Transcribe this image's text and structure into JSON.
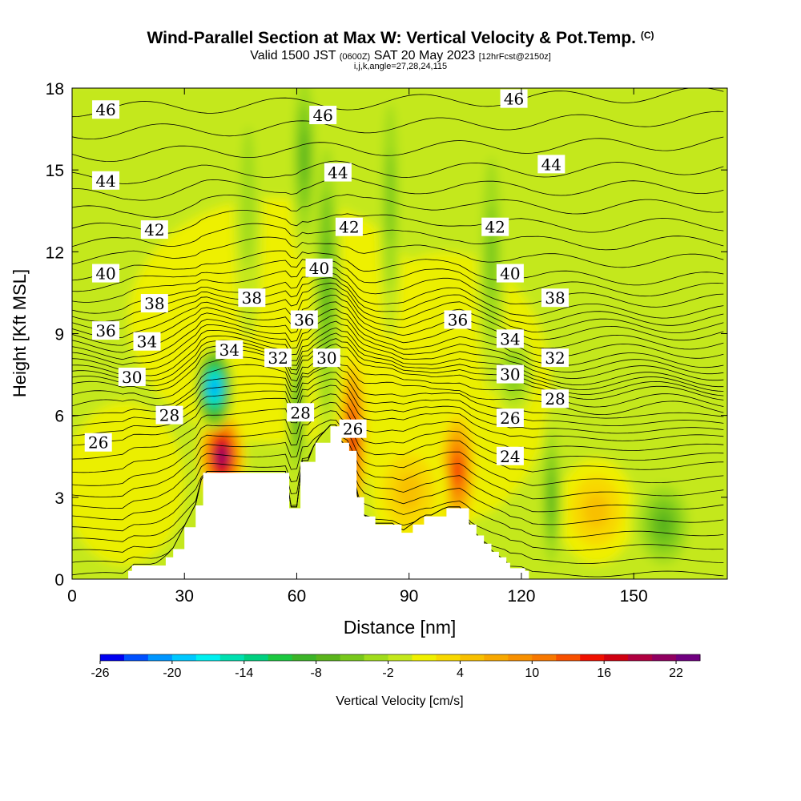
{
  "title": {
    "main": "Wind-Parallel Section at Max W: Vertical Velocity & Pot.Temp.",
    "main_unit": "(C)",
    "valid_prefix": "Valid 1500 JST",
    "valid_utc": "(0600Z)",
    "valid_date": "SAT 20 May 2023",
    "forecast": "[12hrFcst@2150z]",
    "indices": "i,j,k,angle=27,28,24,115"
  },
  "colors": {
    "background_green": "#c4e81c",
    "background_yellow": "#f0f000",
    "contour_line": "#000000",
    "terrain": "#ffffff"
  },
  "chart_data": {
    "type": "heatmap",
    "xlabel": "Distance [nm]",
    "ylabel": "Height [Kft MSL]",
    "xlim": [
      0,
      175
    ],
    "ylim": [
      0,
      18
    ],
    "x_ticks": [
      0,
      30,
      60,
      90,
      120,
      150
    ],
    "y_ticks": [
      0,
      3,
      6,
      9,
      12,
      15,
      18
    ],
    "colorbar": {
      "label": "Vertical Velocity [cm/s]",
      "tick_labels": [
        -26,
        -20,
        -14,
        -8,
        -2,
        4,
        10,
        16,
        22
      ],
      "levels": [
        -26,
        -24,
        -22,
        -20,
        -18,
        -16,
        -14,
        -12,
        -10,
        -8,
        -6,
        -4,
        -2,
        0,
        2,
        4,
        6,
        8,
        10,
        12,
        14,
        16,
        18,
        20,
        22,
        24
      ],
      "colors": [
        "#0000f0",
        "#0050ff",
        "#0096ff",
        "#00c8ff",
        "#00f0f0",
        "#00e0b0",
        "#00d080",
        "#1cc840",
        "#3cb428",
        "#5ab41c",
        "#78c81c",
        "#a0dc1c",
        "#c4e81c",
        "#f0f000",
        "#f8d800",
        "#f8c000",
        "#f8a800",
        "#f89000",
        "#f87800",
        "#f85000",
        "#f01000",
        "#d00010",
        "#b00040",
        "#900060",
        "#700080"
      ]
    },
    "terrain_profile": {
      "x": [
        15,
        16,
        22,
        25,
        27,
        30,
        33,
        35,
        57,
        58,
        60,
        61,
        63,
        65,
        69,
        70,
        71,
        72,
        74,
        76,
        78,
        81,
        86,
        88,
        91,
        94,
        96,
        100,
        104,
        106,
        108,
        110,
        112,
        114,
        116,
        117,
        121,
        122
      ],
      "z": [
        0.3,
        0.5,
        0.5,
        0.8,
        1.1,
        1.9,
        2.7,
        3.9,
        3.9,
        2.6,
        2.6,
        4.3,
        4.3,
        5.0,
        5.6,
        5.6,
        5.6,
        5.0,
        4.7,
        3.0,
        2.3,
        2.0,
        2.0,
        1.7,
        2.0,
        2.3,
        2.3,
        2.6,
        2.6,
        2.0,
        1.6,
        1.3,
        1.0,
        0.8,
        0.6,
        0.4,
        0.3,
        0.0
      ]
    },
    "vertical_velocity_cells": [
      {
        "x": 40,
        "z": 4.5,
        "sx": 5,
        "sz": 1.4,
        "w": 24
      },
      {
        "x": 75,
        "z": 5.2,
        "sx": 3,
        "sz": 2.5,
        "w": 18
      },
      {
        "x": 103,
        "z": 4.0,
        "sx": 4,
        "sz": 1.8,
        "w": 16
      },
      {
        "x": 90,
        "z": 3.2,
        "sx": 8,
        "sz": 1.6,
        "w": 6
      },
      {
        "x": 140,
        "z": 2.5,
        "sx": 8,
        "sz": 1.5,
        "w": 6
      },
      {
        "x": 38,
        "z": 7.0,
        "sx": 4,
        "sz": 1.2,
        "w": -24
      },
      {
        "x": 60,
        "z": 6.0,
        "sx": 2,
        "sz": 2.0,
        "w": -10
      },
      {
        "x": 68,
        "z": 11.0,
        "sx": 3,
        "sz": 5.0,
        "w": -9
      },
      {
        "x": 62,
        "z": 15.5,
        "sx": 3,
        "sz": 3.0,
        "w": -8
      },
      {
        "x": 85,
        "z": 14.0,
        "sx": 2.5,
        "sz": 4.0,
        "w": -7
      },
      {
        "x": 112,
        "z": 12.0,
        "sx": 3,
        "sz": 4.0,
        "w": -6
      },
      {
        "x": 128,
        "z": 3.0,
        "sx": 2.5,
        "sz": 2.5,
        "w": -9
      },
      {
        "x": 158,
        "z": 2.0,
        "sx": 7,
        "sz": 1.5,
        "w": -8
      },
      {
        "x": 47,
        "z": 14.0,
        "sx": 3,
        "sz": 4.0,
        "w": -5
      },
      {
        "x": 118,
        "z": 7.5,
        "sx": 4,
        "sz": 1.2,
        "w": -7
      }
    ],
    "potential_temperature_contours": [
      {
        "value": 46,
        "z_left": 17.2,
        "z_right": 17.8
      },
      {
        "value": 44,
        "z_left": 14.7,
        "z_right": 15.1
      },
      {
        "value": 42,
        "z_left": 12.8,
        "z_right": 13.0
      },
      {
        "value": 40,
        "z_left": 11.2,
        "z_right": 11.0
      },
      {
        "value": 38,
        "z_left": 10.0,
        "z_right": 9.8
      },
      {
        "value": 36,
        "z_left": 9.1,
        "z_right": 9.0
      },
      {
        "value": 34,
        "z_left": 8.3,
        "z_right": 8.0
      },
      {
        "value": 32,
        "z_left": 7.6,
        "z_right": 7.3
      },
      {
        "value": 30,
        "z_left": 7.0,
        "z_right": 6.8
      },
      {
        "value": 28,
        "z_left": 6.0,
        "z_right": 6.0
      },
      {
        "value": 26,
        "z_left": 5.0,
        "z_right": 5.2
      },
      {
        "value": 24,
        "z_left": 3.5,
        "z_right": 4.2
      }
    ],
    "contour_labels": [
      {
        "text": "46",
        "x": 9,
        "z": 17.2
      },
      {
        "text": "46",
        "x": 67,
        "z": 17.0
      },
      {
        "text": "46",
        "x": 118,
        "z": 17.6
      },
      {
        "text": "44",
        "x": 9,
        "z": 14.6
      },
      {
        "text": "44",
        "x": 71,
        "z": 14.9
      },
      {
        "text": "44",
        "x": 128,
        "z": 15.2
      },
      {
        "text": "42",
        "x": 22,
        "z": 12.8
      },
      {
        "text": "42",
        "x": 74,
        "z": 12.9
      },
      {
        "text": "42",
        "x": 113,
        "z": 12.9
      },
      {
        "text": "40",
        "x": 9,
        "z": 11.2
      },
      {
        "text": "40",
        "x": 66,
        "z": 11.4
      },
      {
        "text": "40",
        "x": 117,
        "z": 11.2
      },
      {
        "text": "38",
        "x": 22,
        "z": 10.1
      },
      {
        "text": "38",
        "x": 48,
        "z": 10.3
      },
      {
        "text": "38",
        "x": 129,
        "z": 10.3
      },
      {
        "text": "36",
        "x": 9,
        "z": 9.1
      },
      {
        "text": "36",
        "x": 62,
        "z": 9.5
      },
      {
        "text": "36",
        "x": 103,
        "z": 9.5
      },
      {
        "text": "34",
        "x": 20,
        "z": 8.7
      },
      {
        "text": "34",
        "x": 42,
        "z": 8.4
      },
      {
        "text": "34",
        "x": 117,
        "z": 8.8
      },
      {
        "text": "32",
        "x": 55,
        "z": 8.1
      },
      {
        "text": "32",
        "x": 129,
        "z": 8.1
      },
      {
        "text": "30",
        "x": 16,
        "z": 7.4
      },
      {
        "text": "30",
        "x": 68,
        "z": 8.1
      },
      {
        "text": "30",
        "x": 117,
        "z": 7.5
      },
      {
        "text": "28",
        "x": 26,
        "z": 6.0
      },
      {
        "text": "28",
        "x": 61,
        "z": 6.1
      },
      {
        "text": "28",
        "x": 129,
        "z": 6.6
      },
      {
        "text": "26",
        "x": 7,
        "z": 5.0
      },
      {
        "text": "26",
        "x": 75,
        "z": 5.5
      },
      {
        "text": "26",
        "x": 117,
        "z": 5.9
      },
      {
        "text": "24",
        "x": 117,
        "z": 4.5
      }
    ]
  }
}
